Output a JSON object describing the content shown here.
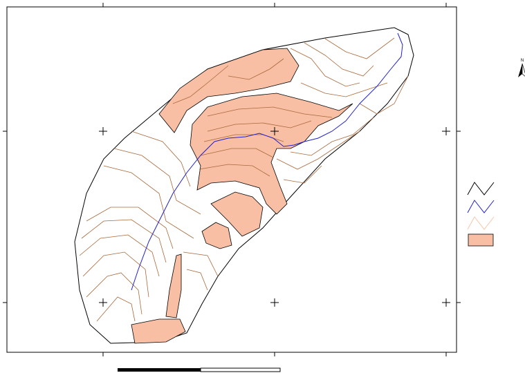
{
  "north_arrow": {
    "label": "N"
  }
}
